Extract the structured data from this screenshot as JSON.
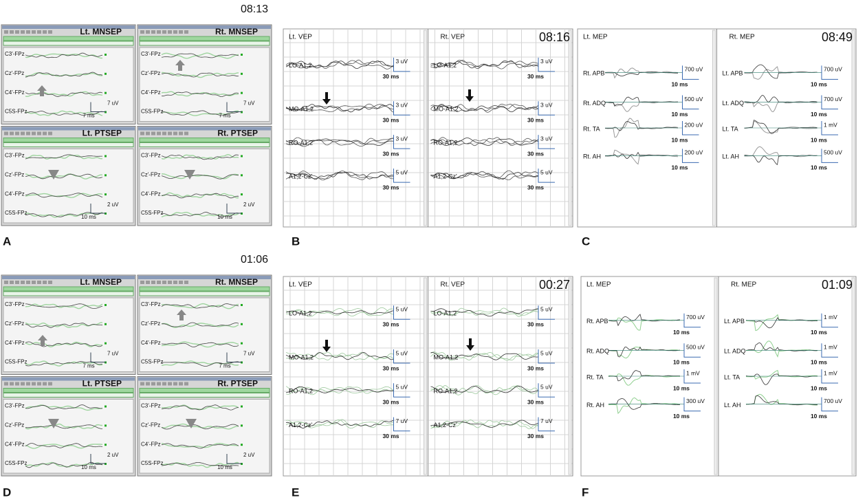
{
  "panels": [
    {
      "letter": "A",
      "time": "08:13",
      "subpanels": [
        {
          "title": "Lt. MNSEP",
          "amp": "7 uV",
          "sweep": "7 ms",
          "channels": [
            {
              "label": "C3'-FPz"
            },
            {
              "label": "Cz'-FPz"
            },
            {
              "label": "C4'-FPz"
            },
            {
              "label": "C5S-FPz"
            }
          ]
        },
        {
          "title": "Rt. MNSEP",
          "amp": "7 uV",
          "sweep": "7 ms",
          "channels": [
            {
              "label": "C3'-FPz"
            },
            {
              "label": "Cz'-FPz"
            },
            {
              "label": "C4'-FPz"
            },
            {
              "label": "C5S-FPz"
            }
          ]
        },
        {
          "title": "Lt. PTSEP",
          "amp": "2 uV",
          "sweep": "10 ms",
          "channels": [
            {
              "label": "C3'-FPz"
            },
            {
              "label": "Cz'-FPz"
            },
            {
              "label": "C4'-FPz"
            },
            {
              "label": "C5S-FPz"
            }
          ]
        },
        {
          "title": "Rt. PTSEP",
          "amp": "2 uV",
          "sweep": "10 ms",
          "channels": [
            {
              "label": "C3'-FPz"
            },
            {
              "label": "Cz'-FPz"
            },
            {
              "label": "C4'-FPz"
            },
            {
              "label": "C5S-FPz"
            }
          ]
        }
      ]
    },
    {
      "letter": "B",
      "time": "08:16",
      "subpanels": [
        {
          "title": "Lt. VEP",
          "channels": [
            {
              "label": "LO-A1,2",
              "amp": "3 uV",
              "sweep": "30 ms"
            },
            {
              "label": "MO-A1,2",
              "amp": "3 uV",
              "sweep": "30 ms"
            },
            {
              "label": "RO-A1,2",
              "amp": "3 uV",
              "sweep": "30 ms"
            },
            {
              "label": "A1,2-Cz'",
              "amp": "5 uV",
              "sweep": "30 ms"
            }
          ]
        },
        {
          "title": "Rt. VEP",
          "channels": [
            {
              "label": "LO-A1,2",
              "amp": "3 uV",
              "sweep": "30 ms"
            },
            {
              "label": "MO-A1,2",
              "amp": "3 uV",
              "sweep": "30 ms"
            },
            {
              "label": "RO-A1,2",
              "amp": "3 uV",
              "sweep": "30 ms"
            },
            {
              "label": "A1,2-Cz'",
              "amp": "5 uV",
              "sweep": "30 ms"
            }
          ]
        }
      ]
    },
    {
      "letter": "C",
      "time": "08:49",
      "subpanels": [
        {
          "title": "Lt. MEP",
          "channels": [
            {
              "label": "Rt. APB",
              "amp": "700 uV",
              "sweep": "10 ms"
            },
            {
              "label": "Rt. ADQ",
              "amp": "500 uV",
              "sweep": "10 ms"
            },
            {
              "label": "Rt. TA",
              "amp": "200 uV",
              "sweep": "10 ms"
            },
            {
              "label": "Rt. AH",
              "amp": "200 uV",
              "sweep": "10 ms"
            }
          ]
        },
        {
          "title": "Rt. MEP",
          "channels": [
            {
              "label": "Lt. APB",
              "amp": "700 uV",
              "sweep": "10 ms"
            },
            {
              "label": "Lt. ADQ",
              "amp": "700 uV",
              "sweep": "10 ms"
            },
            {
              "label": "Lt. TA",
              "amp": "1 mV",
              "sweep": "10 ms"
            },
            {
              "label": "Lt. AH",
              "amp": "500 uV",
              "sweep": "10 ms"
            }
          ]
        }
      ]
    },
    {
      "letter": "D",
      "time": "01:06",
      "subpanels": [
        {
          "title": "Lt. MNSEP",
          "amp": "7 uV",
          "sweep": "7 ms",
          "channels": [
            {
              "label": "C3'-FPz"
            },
            {
              "label": "Cz'-FPz"
            },
            {
              "label": "C4'-FPz"
            },
            {
              "label": "C5S-FPz"
            }
          ]
        },
        {
          "title": "Rt. MNSEP",
          "amp": "7 uV",
          "sweep": "7 ms",
          "channels": [
            {
              "label": "C3'-FPz"
            },
            {
              "label": "Cz'-FPz"
            },
            {
              "label": "C4'-FPz"
            },
            {
              "label": "C5S-FPz"
            }
          ]
        },
        {
          "title": "Lt. PTSEP",
          "amp": "2 uV",
          "sweep": "10 ms",
          "channels": [
            {
              "label": "C3'-FPz"
            },
            {
              "label": "Cz'-FPz"
            },
            {
              "label": "C4'-FPz"
            },
            {
              "label": "C5S-FPz"
            }
          ]
        },
        {
          "title": "Rt. PTSEP",
          "amp": "2 uV",
          "sweep": "10 ms",
          "channels": [
            {
              "label": "C3'-FPz"
            },
            {
              "label": "Cz'-FPz"
            },
            {
              "label": "C4'-FPz"
            },
            {
              "label": "C5S-FPz"
            }
          ]
        }
      ]
    },
    {
      "letter": "E",
      "time": "00:27",
      "subpanels": [
        {
          "title": "Lt. VEP",
          "channels": [
            {
              "label": "LO-A1,2",
              "amp": "5 uV",
              "sweep": "30 ms"
            },
            {
              "label": "MO-A1,2",
              "amp": "5 uV",
              "sweep": "30 ms"
            },
            {
              "label": "RO-A1,2",
              "amp": "5 uV",
              "sweep": "30 ms"
            },
            {
              "label": "A1,2-Cz'",
              "amp": "7 uV",
              "sweep": "30 ms"
            }
          ]
        },
        {
          "title": "Rt. VEP",
          "channels": [
            {
              "label": "LO-A1,2",
              "amp": "5 uV",
              "sweep": "30 ms"
            },
            {
              "label": "MO-A1,2",
              "amp": "5 uV",
              "sweep": "30 ms"
            },
            {
              "label": "RO-A1,2",
              "amp": "5 uV",
              "sweep": "30 ms"
            },
            {
              "label": "A1,2-Cz'",
              "amp": "7 uV",
              "sweep": "30 ms"
            }
          ]
        }
      ]
    },
    {
      "letter": "F",
      "time": "01:09",
      "subpanels": [
        {
          "title": "Lt. MEP",
          "channels": [
            {
              "label": "Rt. APB",
              "amp": "700 uV",
              "sweep": "10 ms"
            },
            {
              "label": "Rt. ADQ",
              "amp": "500 uV",
              "sweep": "10 ms"
            },
            {
              "label": "Rt. TA",
              "amp": "1 mV",
              "sweep": "10 ms"
            },
            {
              "label": "Rt. AH",
              "amp": "300 uV",
              "sweep": "10 ms"
            }
          ]
        },
        {
          "title": "Rt. MEP",
          "channels": [
            {
              "label": "Lt. APB",
              "amp": "1 mV",
              "sweep": "10 ms"
            },
            {
              "label": "Lt. ADQ",
              "amp": "1 mV",
              "sweep": "10 ms"
            },
            {
              "label": "Lt. TA",
              "amp": "1 mV",
              "sweep": "10 ms"
            },
            {
              "label": "Lt. AH",
              "amp": "700 uV",
              "sweep": "10 ms"
            }
          ]
        }
      ]
    }
  ]
}
